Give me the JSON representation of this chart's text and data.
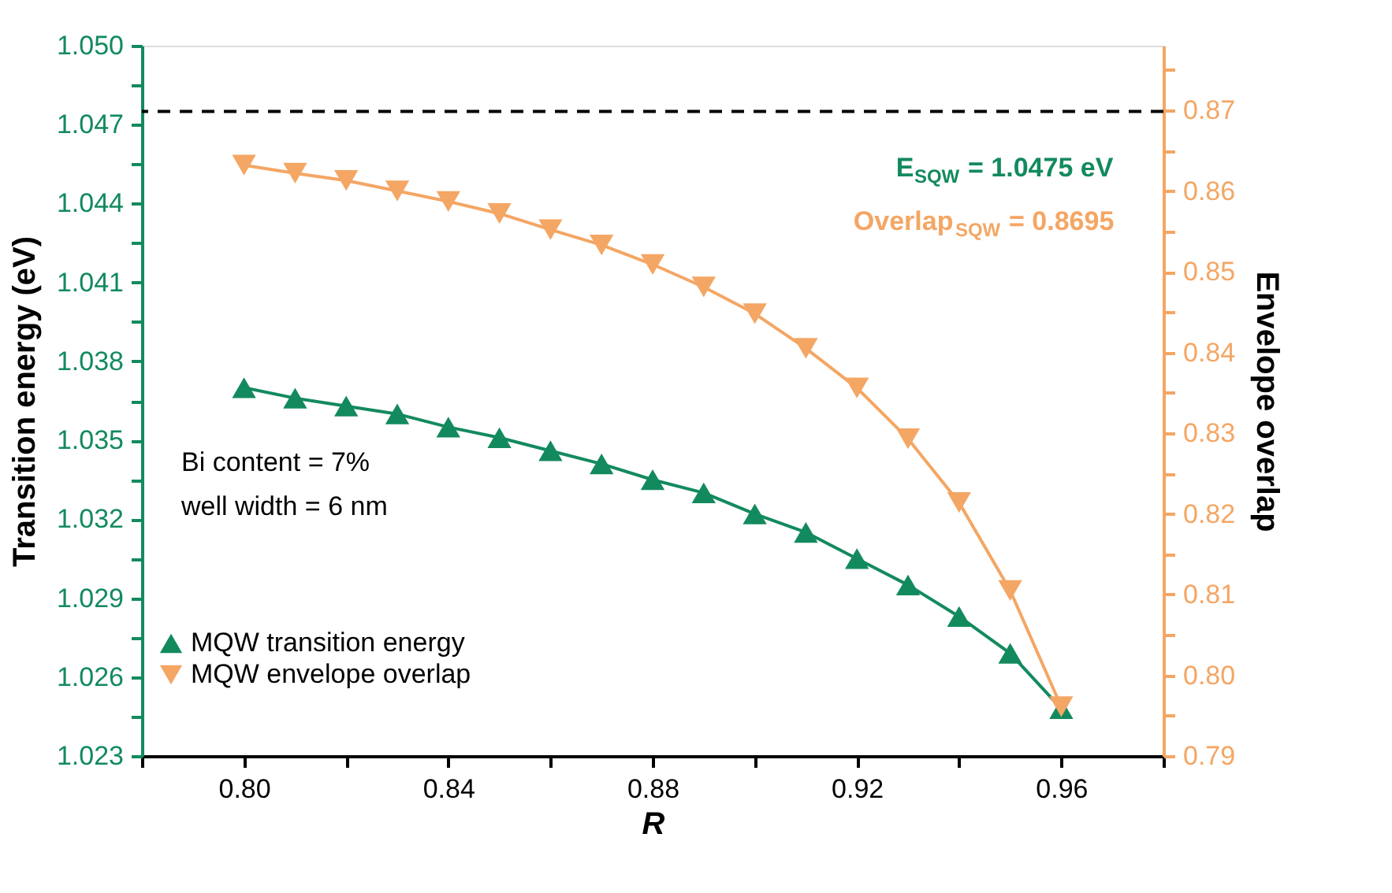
{
  "chart_data": {
    "type": "line",
    "xlabel": "R",
    "ylabel": "Transition energy (eV)",
    "y2label": "Envelope overlap",
    "x": [
      0.8,
      0.81,
      0.82,
      0.83,
      0.84,
      0.85,
      0.86,
      0.87,
      0.88,
      0.89,
      0.9,
      0.91,
      0.92,
      0.93,
      0.94,
      0.95,
      0.96
    ],
    "series": [
      {
        "name": "MQW transition energy",
        "color": "#138a5e",
        "marker": "triangle",
        "values": [
          1.037,
          1.0366,
          1.0363,
          1.036,
          1.0355,
          1.0351,
          1.0346,
          1.0341,
          1.0335,
          1.033,
          1.0322,
          1.0315,
          1.0305,
          1.0295,
          1.0283,
          1.0269,
          1.0248
        ]
      },
      {
        "name": "MQW envelope overlap",
        "color": "#f4a664",
        "marker": "triangle-down",
        "axis": "y2",
        "values": [
          0.8632,
          0.8622,
          0.8613,
          0.86,
          0.8587,
          0.8572,
          0.8552,
          0.8533,
          0.8509,
          0.8481,
          0.8448,
          0.8405,
          0.8356,
          0.8293,
          0.8214,
          0.8105,
          0.7961
        ]
      }
    ],
    "xlim": [
      0.78,
      0.98
    ],
    "xticks": [
      {
        "value": 0.78,
        "label": null
      },
      {
        "value": 0.8,
        "label": "0.80"
      },
      {
        "value": 0.82,
        "label": null
      },
      0.84,
      {
        "value": 0.86,
        "label": null
      },
      0.88,
      {
        "value": 0.9,
        "label": null
      },
      0.92,
      {
        "value": 0.94,
        "label": null
      },
      0.96,
      {
        "value": 0.98,
        "label": null
      }
    ],
    "ylim": [
      1.023,
      1.05
    ],
    "yticks": [
      {
        "value": 1.023,
        "label": "1.023"
      },
      {
        "value": 1.0245,
        "label": null
      },
      {
        "value": 1.026,
        "label": "1.026"
      },
      {
        "value": 1.0275,
        "label": null
      },
      {
        "value": 1.029,
        "label": "1.029"
      },
      {
        "value": 1.0305,
        "label": null
      },
      {
        "value": 1.032,
        "label": "1.032"
      },
      {
        "value": 1.0335,
        "label": null
      },
      {
        "value": 1.035,
        "label": "1.035"
      },
      {
        "value": 1.0365,
        "label": null
      },
      {
        "value": 1.038,
        "label": "1.038"
      },
      {
        "value": 1.0395,
        "label": null
      },
      {
        "value": 1.041,
        "label": "1.041"
      },
      {
        "value": 1.0425,
        "label": null
      },
      {
        "value": 1.044,
        "label": "1.044"
      },
      {
        "value": 1.0455,
        "label": null
      },
      {
        "value": 1.047,
        "label": "1.047"
      },
      {
        "value": 1.0485,
        "label": null
      },
      {
        "value": 1.05,
        "label": "1.050"
      }
    ],
    "y2lim": [
      0.79,
      0.878
    ],
    "y2ticks": [
      {
        "value": 0.79,
        "label": "0.79"
      },
      {
        "value": 0.795,
        "label": null
      },
      {
        "value": 0.8,
        "label": "0.80"
      },
      {
        "value": 0.805,
        "label": null
      },
      {
        "value": 0.81,
        "label": "0.81"
      },
      {
        "value": 0.815,
        "label": null
      },
      {
        "value": 0.82,
        "label": "0.82"
      },
      {
        "value": 0.825,
        "label": null
      },
      {
        "value": 0.83,
        "label": "0.83"
      },
      {
        "value": 0.835,
        "label": null
      },
      {
        "value": 0.84,
        "label": "0.84"
      },
      {
        "value": 0.845,
        "label": null
      },
      {
        "value": 0.85,
        "label": "0.85"
      },
      {
        "value": 0.855,
        "label": null
      },
      {
        "value": 0.86,
        "label": "0.86"
      },
      {
        "value": 0.865,
        "label": null
      },
      {
        "value": 0.87,
        "label": "0.87"
      },
      {
        "value": 0.875,
        "label": null
      }
    ],
    "ref_lines": [
      {
        "axis": "y",
        "value": 1.0475,
        "color": "#000000",
        "line_style": "dashed"
      }
    ],
    "annotations": [
      "E$_{SQW}$ = 1.0475 eV",
      "Overlap$_{SQW}$ = 0.8695",
      "Bi content = 7%",
      "well width = 6 nm"
    ],
    "legend": "bottom left",
    "grid": false,
    "line_style": "solid"
  }
}
